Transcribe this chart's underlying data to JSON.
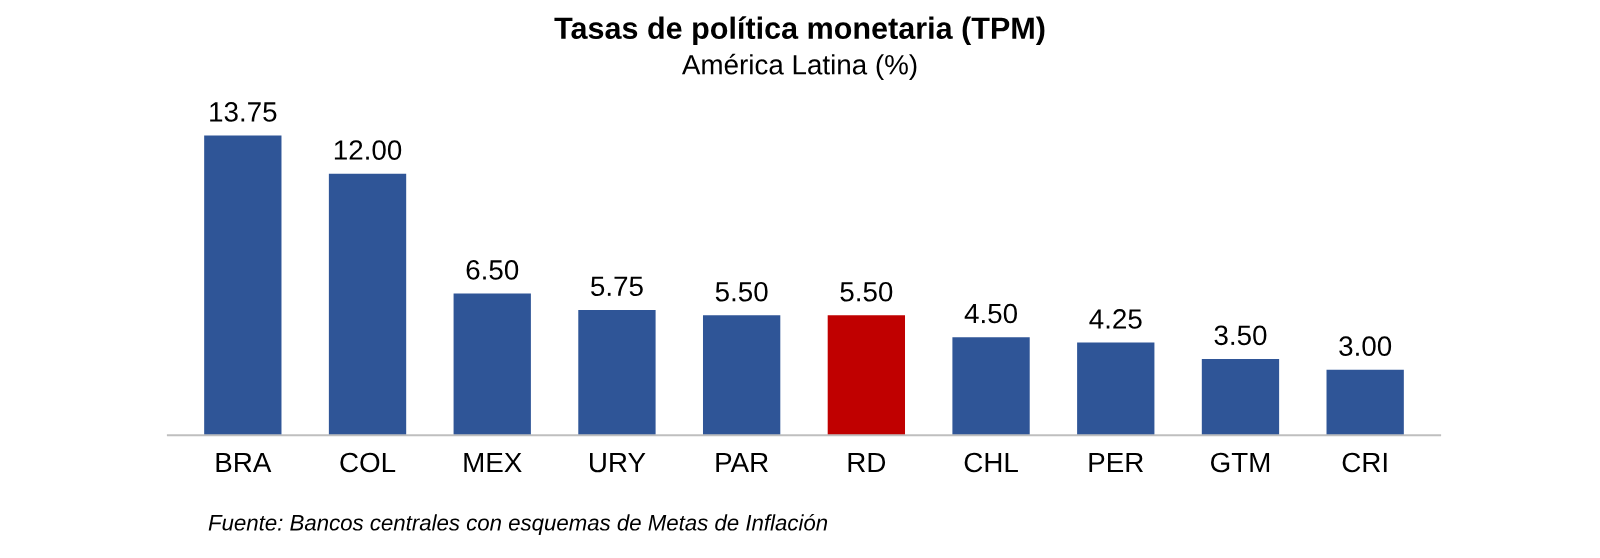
{
  "chart_data": {
    "type": "bar",
    "title": "Tasas de política monetaria (TPM)",
    "subtitle": "América Latina (%)",
    "categories": [
      "BRA",
      "COL",
      "MEX",
      "URY",
      "PAR",
      "RD",
      "CHL",
      "PER",
      "GTM",
      "CRI"
    ],
    "values": [
      13.75,
      12.0,
      6.5,
      5.75,
      5.5,
      5.5,
      4.5,
      4.25,
      3.5,
      3.0
    ],
    "value_labels": [
      "13.75",
      "12.00",
      "6.50",
      "5.75",
      "5.50",
      "5.50",
      "4.50",
      "4.25",
      "3.50",
      "3.00"
    ],
    "colors": [
      "#2f5597",
      "#2f5597",
      "#2f5597",
      "#2f5597",
      "#2f5597",
      "#c00000",
      "#2f5597",
      "#2f5597",
      "#2f5597",
      "#2f5597"
    ],
    "grid": false,
    "legend": false,
    "annotations": [
      "Fuente: Bancos centrales con esquemas de Metas de Inflación"
    ]
  }
}
